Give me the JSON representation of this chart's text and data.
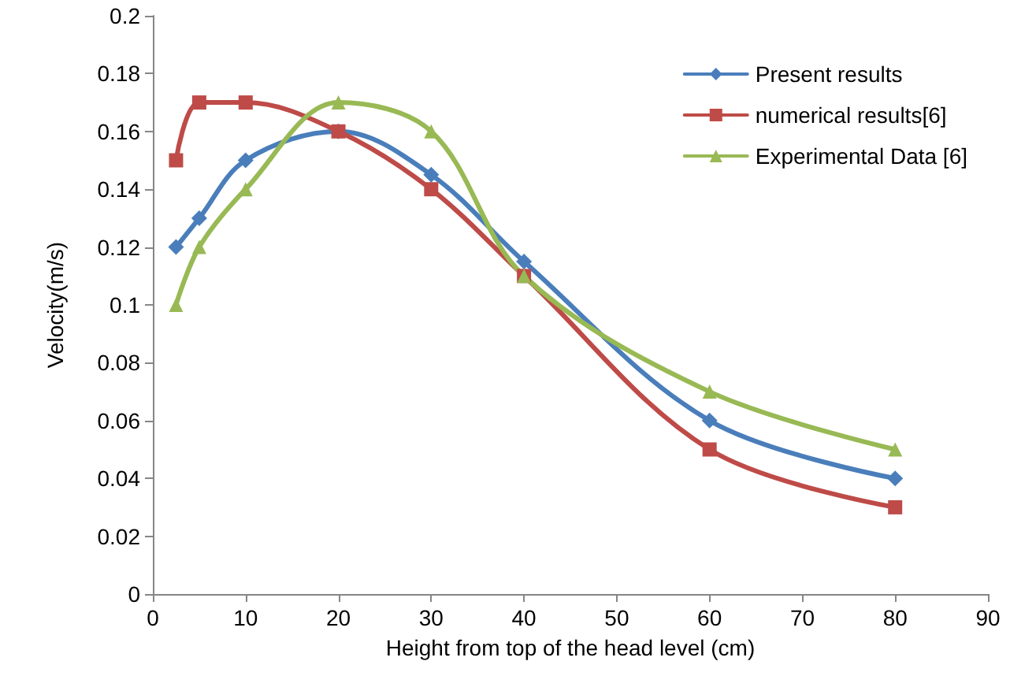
{
  "chart_data": {
    "type": "line",
    "xlabel": "Height from top of the head level (cm)",
    "ylabel": "Velocity(m/s)",
    "x": [
      2.5,
      5,
      10,
      20,
      30,
      40,
      60,
      80
    ],
    "series": [
      {
        "name": "Present results",
        "color": "#4a7ebb",
        "marker": "diamond",
        "values": [
          0.12,
          0.13,
          0.15,
          0.16,
          0.145,
          0.115,
          0.06,
          0.04
        ]
      },
      {
        "name": "numerical results[6]",
        "color": "#be4b48",
        "marker": "square",
        "values": [
          0.15,
          0.17,
          0.17,
          0.16,
          0.14,
          0.11,
          0.05,
          0.03
        ]
      },
      {
        "name": "Experimental Data [6]",
        "color": "#98b954",
        "marker": "triangle",
        "values": [
          0.1,
          0.12,
          0.14,
          0.17,
          0.16,
          0.11,
          0.07,
          0.05
        ]
      }
    ],
    "xlim": [
      0,
      90
    ],
    "xticks": [
      0,
      10,
      20,
      30,
      40,
      50,
      60,
      70,
      80,
      90
    ],
    "ylim": [
      0,
      0.2
    ],
    "yticks": [
      0,
      0.02,
      0.04,
      0.06,
      0.08,
      0.1,
      0.12,
      0.14,
      0.16,
      0.18,
      0.2
    ],
    "legend": "top right",
    "line_style": "solid"
  }
}
